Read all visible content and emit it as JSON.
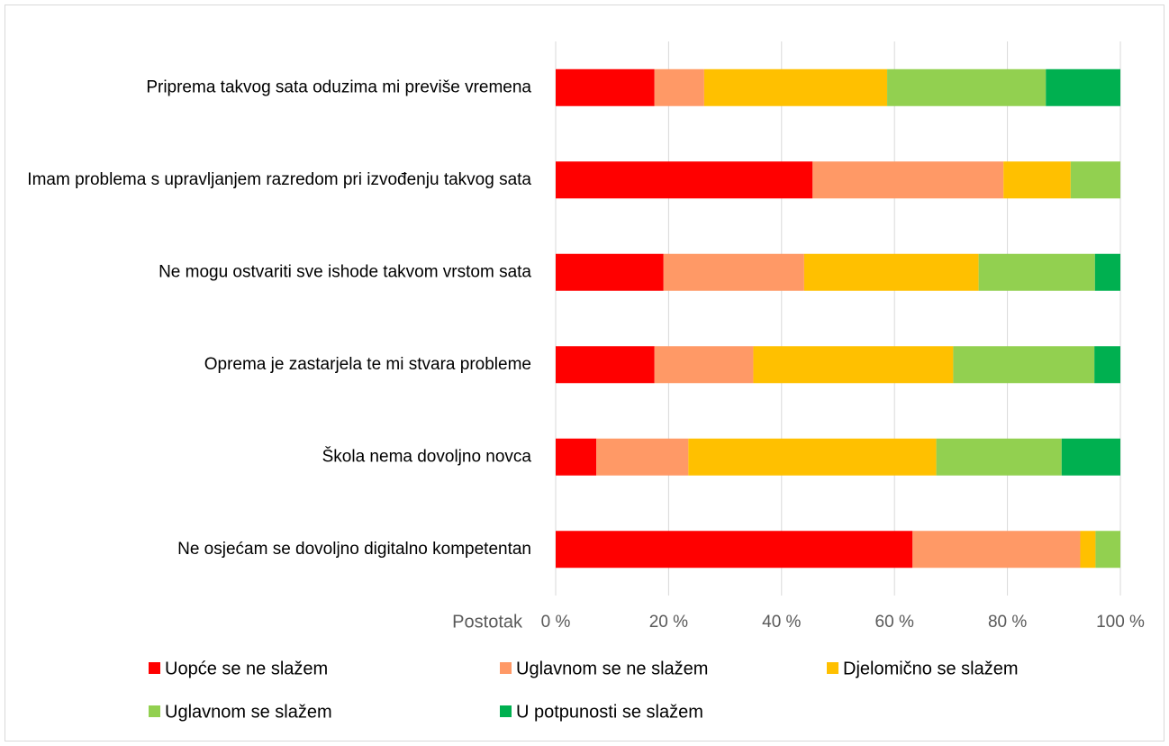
{
  "chart_data": {
    "type": "stacked-bar-horizontal",
    "categories": [
      "Priprema takvog sata oduzima mi previše vremena",
      "Imam problema s upravljanjem razredom pri izvođenju takvog sata",
      "Ne mogu ostvariti sve ishode takvom vrstom sata",
      "Oprema je zastarjela te mi stvara probleme",
      "Škola nema dovoljno novca",
      "Ne osjećam se dovoljno digitalno kompetentan"
    ],
    "series": [
      {
        "name": "Uopće se ne slažem",
        "color": "#ff0000",
        "values": [
          17.5,
          45.5,
          19.1,
          17.5,
          7.2,
          63.2
        ]
      },
      {
        "name": "Uglavnom se ne slažem",
        "color": "#ff9966",
        "values": [
          8.8,
          33.8,
          24.9,
          17.5,
          16.3,
          29.7
        ]
      },
      {
        "name": "Djelomično se slažem",
        "color": "#ffc000",
        "values": [
          32.4,
          11.9,
          30.9,
          35.4,
          43.9,
          2.7
        ]
      },
      {
        "name": "Uglavnom se slažem",
        "color": "#92d050",
        "values": [
          28.1,
          8.8,
          20.6,
          25.0,
          22.2,
          4.4
        ]
      },
      {
        "name": "U potpunosti se slažem",
        "color": "#00b050",
        "values": [
          13.2,
          0,
          4.5,
          4.6,
          10.4,
          0
        ]
      }
    ],
    "xlabel": "Postotak",
    "xlim": [
      0,
      100
    ],
    "xticks": [
      {
        "value": 0,
        "label": "0 %"
      },
      {
        "value": 20,
        "label": "20 %"
      },
      {
        "value": 40,
        "label": "40 %"
      },
      {
        "value": 60,
        "label": "60 %"
      },
      {
        "value": 80,
        "label": "80 %"
      },
      {
        "value": 100,
        "label": "100 %"
      }
    ],
    "grid": true,
    "legend": "bottom"
  }
}
